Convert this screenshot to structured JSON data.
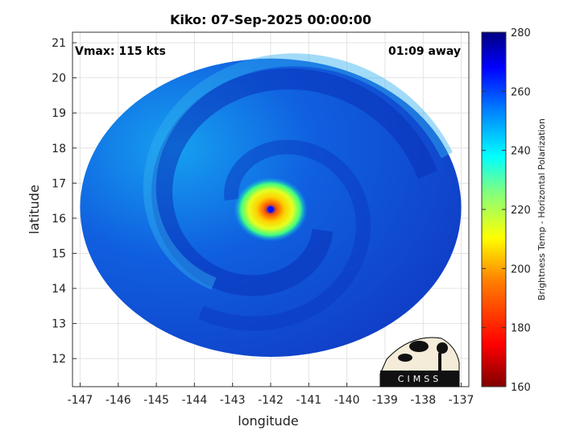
{
  "chart_data": {
    "type": "heatmap",
    "title": "Kiko: 07-Sep-2025 00:00:00",
    "xlabel": "longitude",
    "ylabel": "latitude",
    "xlim": [
      -147.2,
      -136.8
    ],
    "ylim": [
      11.2,
      21.3
    ],
    "xticks": [
      -147,
      -146,
      -145,
      -144,
      -143,
      -142,
      -141,
      -140,
      -139,
      -138,
      -137
    ],
    "yticks": [
      12,
      13,
      14,
      15,
      16,
      17,
      18,
      19,
      20,
      21
    ],
    "grid": true,
    "annotations": {
      "vmax": "Vmax: 115 kts",
      "time_offset": "01:09 away"
    },
    "storm_center": {
      "lon": -142.0,
      "lat": 16.25
    },
    "swath": {
      "center_lon": -142.0,
      "center_lat": 16.3,
      "radius_deg": 5.0
    },
    "colorbar": {
      "label": "Brightness Temp - Horizontal Polarization",
      "min": 160,
      "max": 280,
      "ticks": [
        160,
        180,
        200,
        220,
        240,
        260,
        280
      ],
      "colormap": "jet",
      "colors": [
        "#800000",
        "#ff0000",
        "#ff8000",
        "#ffff00",
        "#80ff80",
        "#00ffff",
        "#0080ff",
        "#0000ff",
        "#000080"
      ]
    },
    "logo_text": "CIMSS"
  }
}
